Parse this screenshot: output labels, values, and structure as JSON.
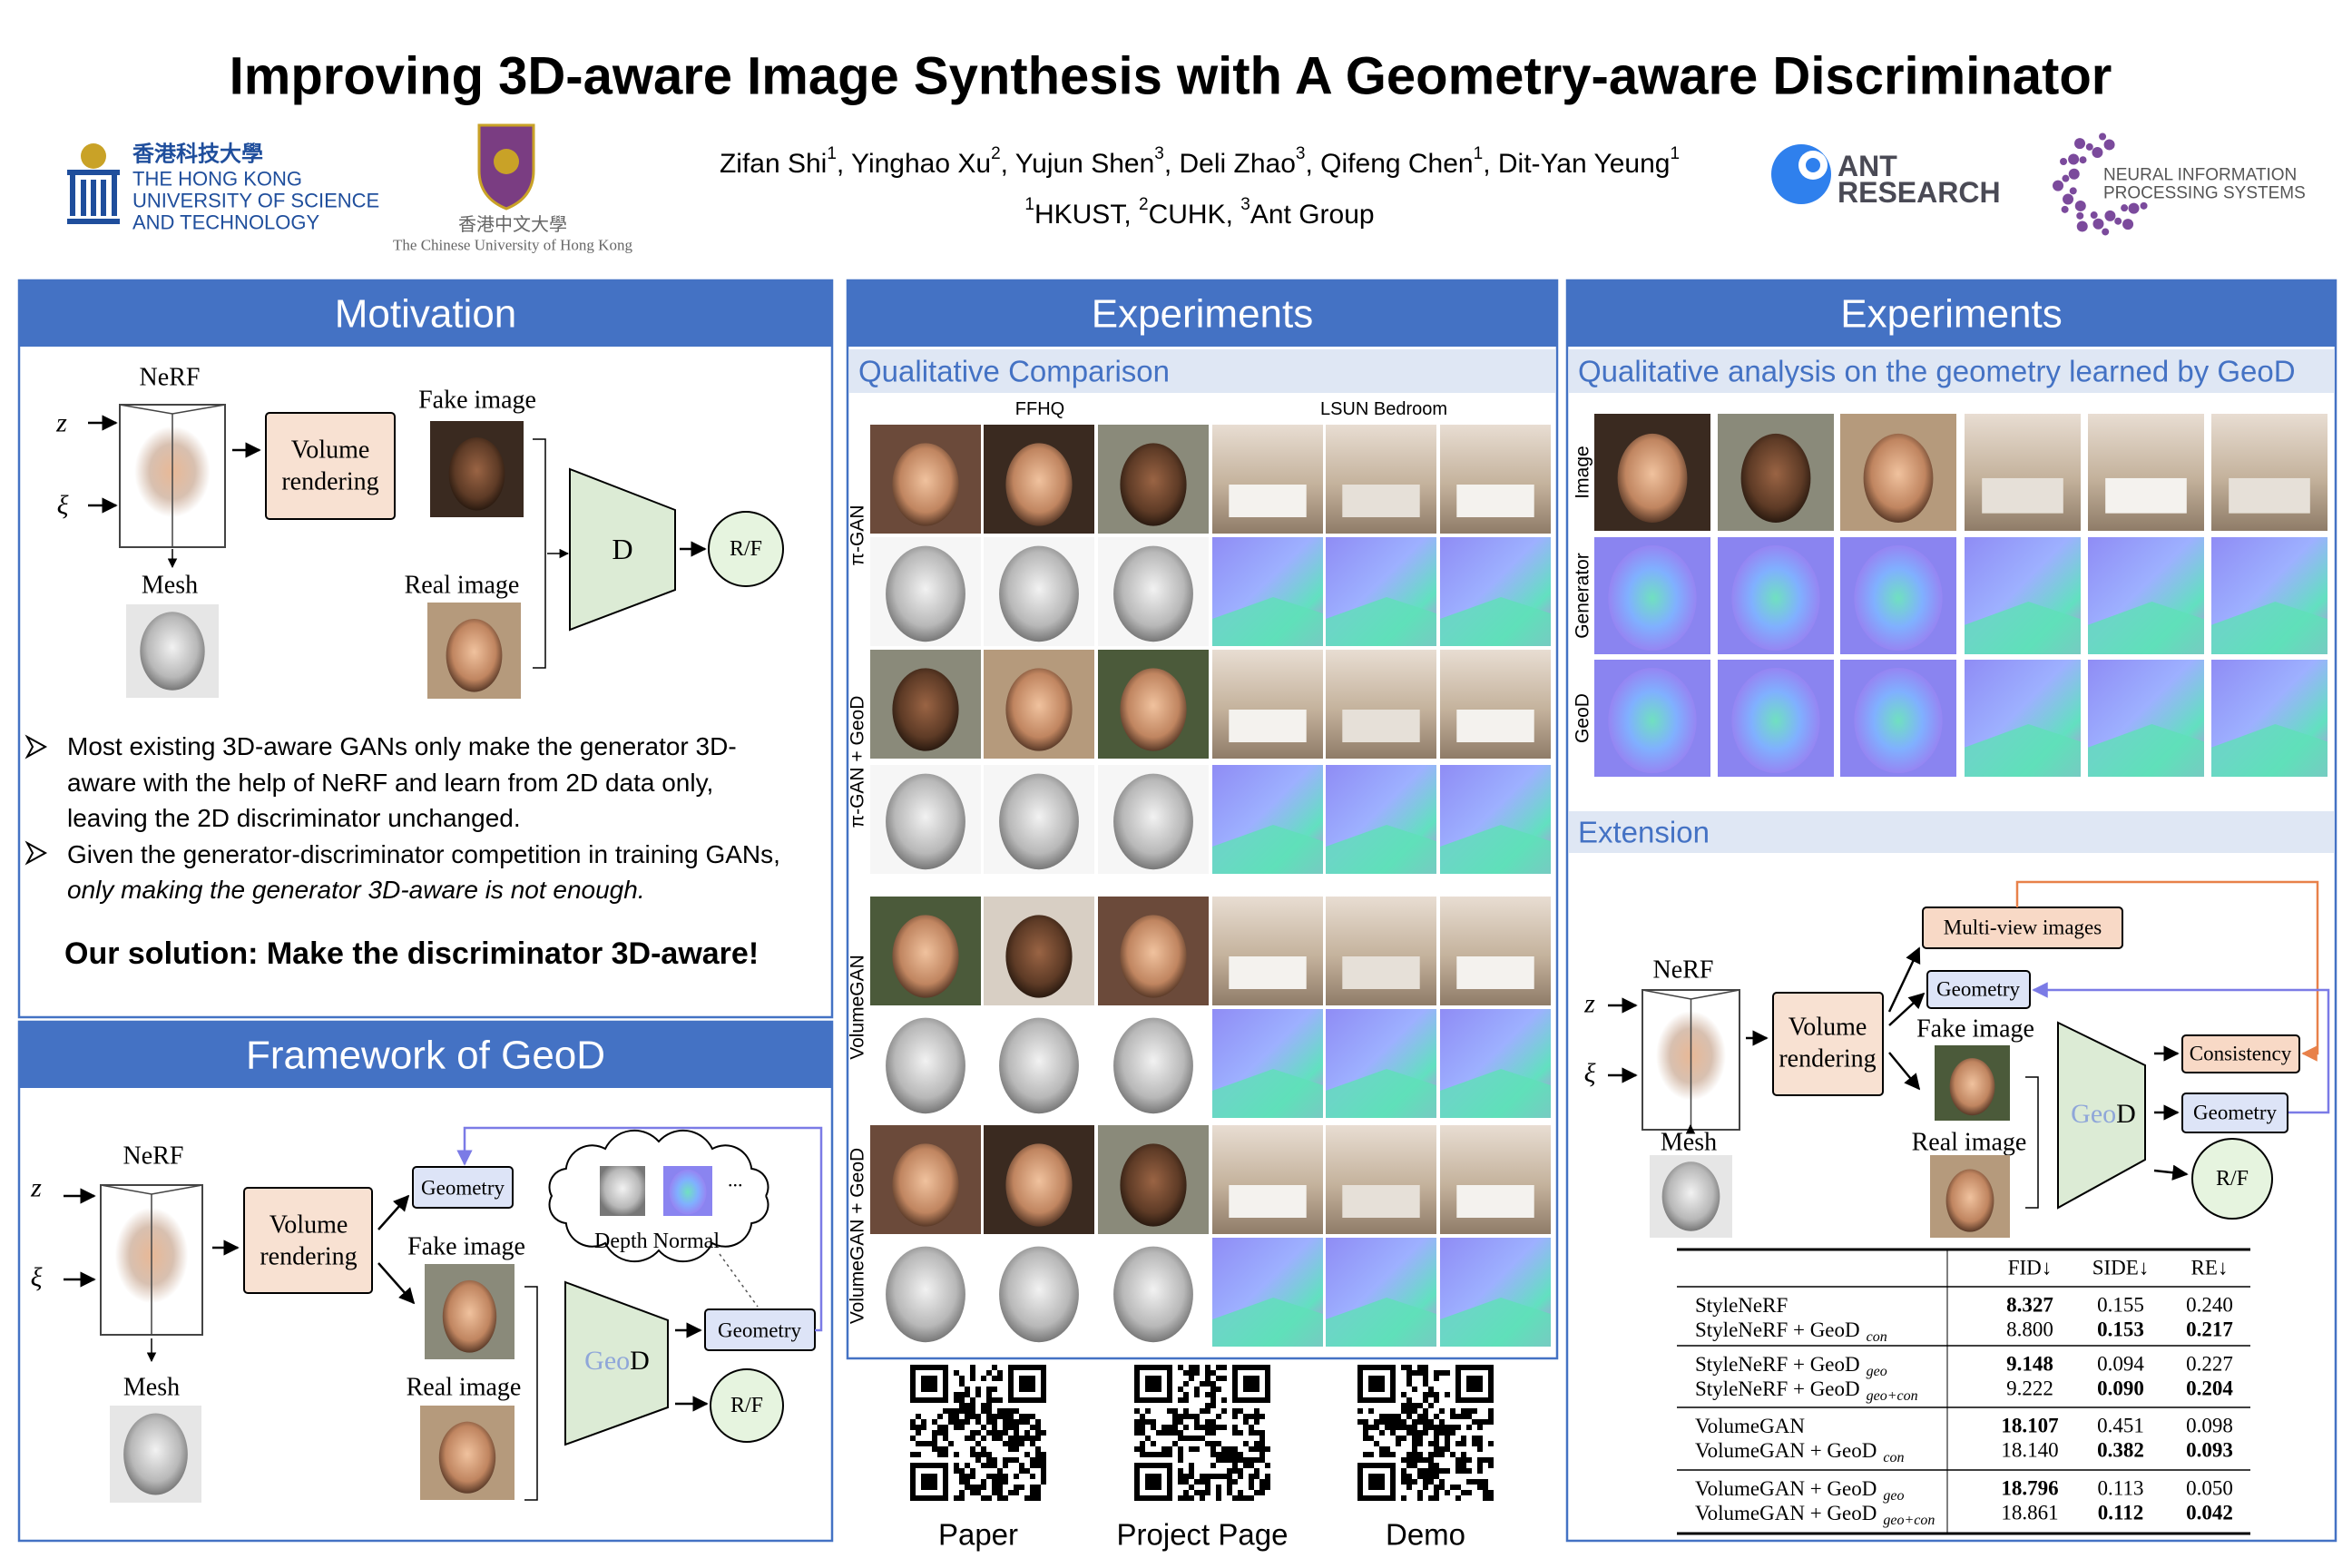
{
  "header": {
    "title": "Improving 3D-aware Image Synthesis with A Geometry-aware Discriminator",
    "authors": [
      {
        "name": "Zifan Shi",
        "affiliation": "1"
      },
      {
        "name": ", Yinghao Xu",
        "affiliation": "2"
      },
      {
        "name": ", Yujun Shen",
        "affiliation": "3"
      },
      {
        "name": ", Deli Zhao",
        "affiliation": "3"
      },
      {
        "name": ", Qifeng Chen",
        "affiliation": "1"
      },
      {
        "name": ", Dit-Yan Yeung",
        "affiliation": "1"
      }
    ],
    "affiliations": [
      {
        "mark": "1",
        "name": "HKUST, "
      },
      {
        "mark": "2",
        "name": "CUHK, "
      },
      {
        "mark": "3",
        "name": "Ant Group"
      }
    ],
    "logos": {
      "hkust": {
        "chinese": "香港科技大學",
        "english": [
          "THE HONG KONG",
          "UNIVERSITY OF SCIENCE",
          "AND TECHNOLOGY"
        ]
      },
      "cuhk": {
        "chinese": "香港中文大學",
        "english": "The Chinese University of Hong Kong"
      },
      "ant": [
        "ANT",
        "RESEARCH"
      ],
      "neurips": [
        "NEURAL INFORMATION",
        "PROCESSING SYSTEMS"
      ]
    }
  },
  "motivation": {
    "heading": "Motivation",
    "diagram": {
      "nerf": "NeRF",
      "z": "z",
      "xi": "ξ",
      "volume": [
        "Volume",
        "rendering"
      ],
      "fake": "Fake image",
      "real": "Real image",
      "mesh": "Mesh",
      "d": "D",
      "rf": "R/F"
    },
    "bullets": [
      {
        "text": "Most existing 3D-aware GANs only make the generator 3D-aware with the help of NeRF and learn from 2D data only, leaving the 2D discriminator unchanged."
      },
      {
        "text": "Given the generator-discriminator competition in training GANs,",
        "emphasis": "only making the generator 3D-aware is not enough."
      }
    ],
    "solution": "Our solution: Make the discriminator 3D-aware!"
  },
  "framework": {
    "heading": "Framework of GeoD",
    "diagram": {
      "nerf": "NeRF",
      "z": "z",
      "xi": "ξ",
      "volume": [
        "Volume",
        "rendering"
      ],
      "geometry_in": "Geometry",
      "fake": "Fake image",
      "real": "Real image",
      "mesh": "Mesh",
      "cloud": "Depth Normal",
      "ellipsis": "...",
      "geo": "Geo",
      "d": "D",
      "geometry_out": "Geometry",
      "rf": "R/F"
    }
  },
  "experiments_left": {
    "heading": "Experiments",
    "subheading": "Qualitative Comparison",
    "columns": [
      "FFHQ",
      "LSUN Bedroom"
    ],
    "rows": [
      "π-GAN",
      "π-GAN + GeoD",
      "VolumeGAN",
      "VolumeGAN + GeoD"
    ],
    "links": [
      "Paper",
      "Project Page",
      "Demo"
    ]
  },
  "experiments_right": {
    "heading": "Experiments",
    "subheading": "Qualitative analysis on the geometry learned by GeoD",
    "rows": [
      "Image",
      "Generator",
      "GeoD"
    ],
    "extension": {
      "heading": "Extension",
      "diagram": {
        "nerf": "NeRF",
        "z": "z",
        "xi": "ξ",
        "volume": [
          "Volume",
          "rendering"
        ],
        "multiview": "Multi-view images",
        "geometry_in": "Geometry",
        "fake": "Fake image",
        "real": "Real image",
        "mesh": "Mesh",
        "geo": "Geo",
        "d": "D",
        "consistency": "Consistency",
        "geometry_out": "Geometry",
        "rf": "R/F"
      },
      "table": {
        "header": [
          "FID↓",
          "SIDE↓",
          "RE↓"
        ],
        "groups": [
          [
            {
              "name": "StyleNeRF",
              "values": [
                "8.327",
                "0.155",
                "0.240"
              ],
              "bold": [
                true,
                false,
                false
              ]
            },
            {
              "name": "StyleNeRF + GeoD",
              "sub": "con",
              "values": [
                "8.800",
                "0.153",
                "0.217"
              ],
              "bold": [
                false,
                true,
                true
              ]
            }
          ],
          [
            {
              "name": "StyleNeRF + GeoD",
              "sub": "geo",
              "values": [
                "9.148",
                "0.094",
                "0.227"
              ],
              "bold": [
                true,
                false,
                false
              ]
            },
            {
              "name": "StyleNeRF + GeoD",
              "sub": "geo+con",
              "values": [
                "9.222",
                "0.090",
                "0.204"
              ],
              "bold": [
                false,
                true,
                true
              ]
            }
          ],
          [
            {
              "name": "VolumeGAN",
              "values": [
                "18.107",
                "0.451",
                "0.098"
              ],
              "bold": [
                true,
                false,
                false
              ]
            },
            {
              "name": "VolumeGAN + GeoD",
              "sub": "con",
              "values": [
                "18.140",
                "0.382",
                "0.093"
              ],
              "bold": [
                false,
                true,
                true
              ]
            }
          ],
          [
            {
              "name": "VolumeGAN + GeoD",
              "sub": "geo",
              "values": [
                "18.796",
                "0.113",
                "0.050"
              ],
              "bold": [
                true,
                false,
                false
              ]
            },
            {
              "name": "VolumeGAN + GeoD",
              "sub": "geo+con",
              "values": [
                "18.861",
                "0.112",
                "0.042"
              ],
              "bold": [
                false,
                true,
                true
              ]
            }
          ]
        ]
      }
    }
  }
}
